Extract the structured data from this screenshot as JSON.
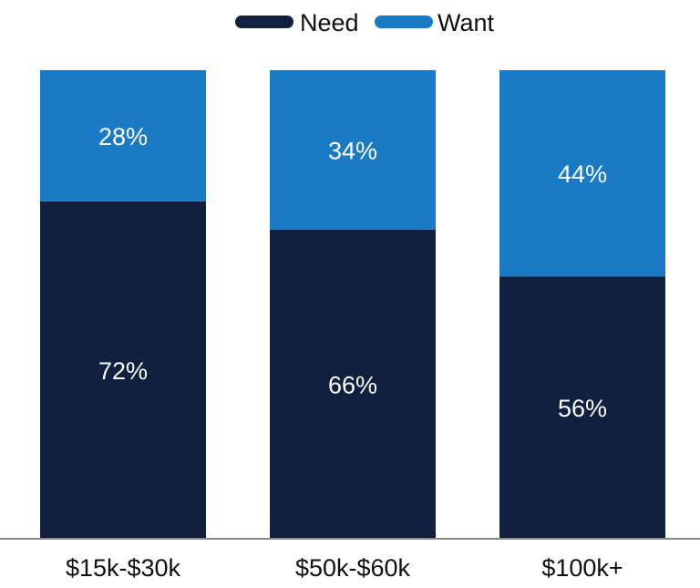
{
  "chart_data": {
    "type": "bar",
    "stacked": true,
    "categories": [
      "$15k-$30k",
      "$50k-$60k",
      "$100k+"
    ],
    "series": [
      {
        "name": "Need",
        "values": [
          72,
          66,
          56
        ],
        "labels": [
          "72%",
          "66%",
          "56%"
        ],
        "color": "#12203f"
      },
      {
        "name": "Want",
        "values": [
          28,
          34,
          44
        ],
        "labels": [
          "28%",
          "34%",
          "44%"
        ],
        "color": "#1a7bc4"
      }
    ],
    "ylim": [
      0,
      100
    ],
    "legend_position": "top-center",
    "grid": false
  }
}
